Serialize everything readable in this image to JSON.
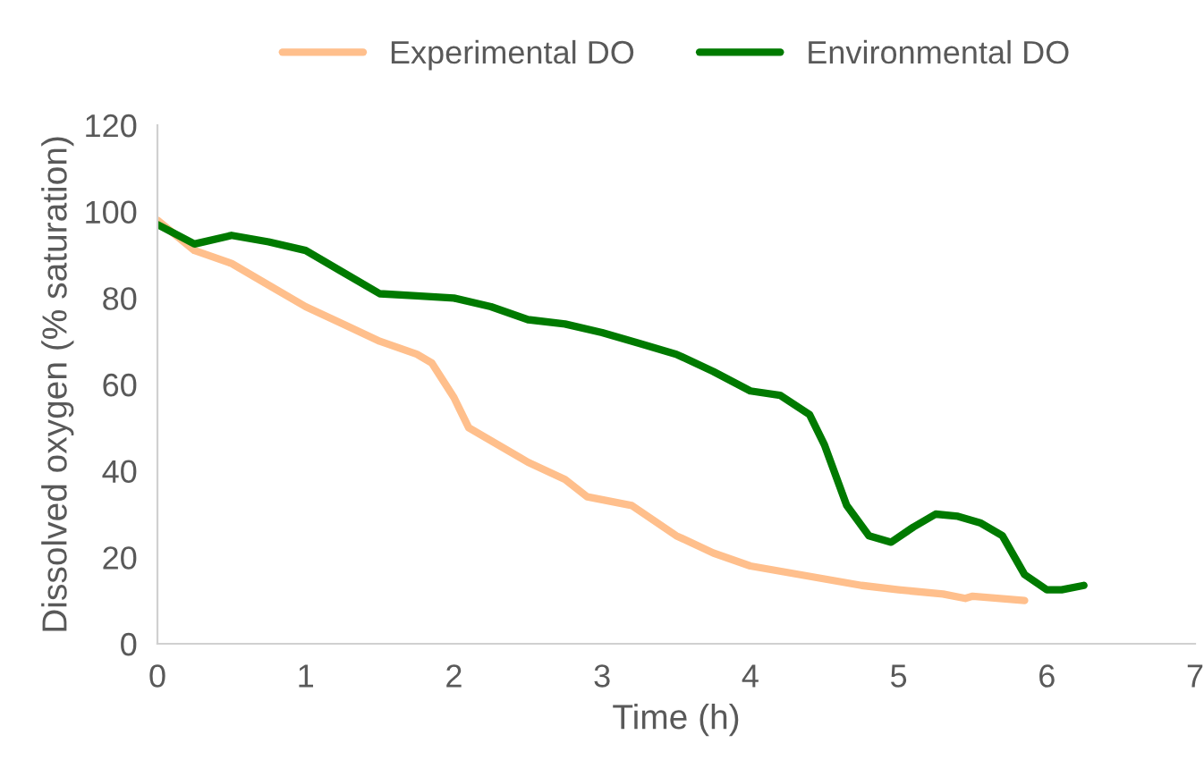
{
  "chart_data": {
    "type": "line",
    "xlabel": "Time (h)",
    "ylabel": "Dissolved oxygen (% saturation)",
    "xlim": [
      0,
      7
    ],
    "xticks": [
      0,
      1,
      2,
      3,
      4,
      5,
      6,
      7
    ],
    "ylim": [
      0,
      120
    ],
    "yticks": [
      0,
      20,
      40,
      60,
      80,
      100,
      120
    ],
    "grid": false,
    "legend": "top",
    "marker": "none",
    "line_style": "solid",
    "series": [
      {
        "name": "Experimental DO",
        "color": "#ffbf8c",
        "x": [
          0,
          0.25,
          0.5,
          0.75,
          1,
          1.25,
          1.5,
          1.75,
          1.85,
          2,
          2.1,
          2.5,
          2.75,
          2.9,
          3.2,
          3.5,
          3.75,
          4,
          4.5,
          4.75,
          5,
          5.3,
          5.45,
          5.5,
          5.85
        ],
        "values": [
          98,
          91,
          88,
          83,
          78,
          74,
          70,
          67,
          65,
          57,
          50,
          42,
          38,
          34,
          32,
          25,
          21,
          18,
          15,
          13.5,
          12.5,
          11.5,
          10.5,
          11,
          10
        ]
      },
      {
        "name": "Environmental DO",
        "color": "#007a00",
        "x": [
          0,
          0.25,
          0.5,
          0.75,
          1,
          1.25,
          1.5,
          1.75,
          2,
          2.25,
          2.5,
          2.75,
          3,
          3.25,
          3.5,
          3.75,
          4,
          4.2,
          4.4,
          4.5,
          4.65,
          4.8,
          4.95,
          5.1,
          5.25,
          5.4,
          5.55,
          5.7,
          5.85,
          6,
          6.1,
          6.25
        ],
        "values": [
          97,
          92.5,
          94.5,
          93,
          91,
          86,
          81,
          80.5,
          80,
          78,
          75,
          74,
          72,
          69.5,
          67,
          63,
          58.5,
          57.5,
          53,
          46,
          32,
          25,
          23.5,
          27,
          30,
          29.5,
          28,
          25,
          16,
          12.5,
          12.5,
          13.5
        ]
      }
    ]
  }
}
